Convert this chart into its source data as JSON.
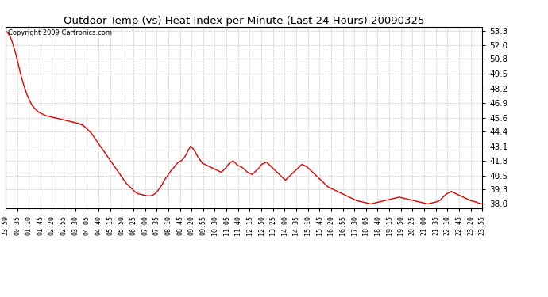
{
  "title": "Outdoor Temp (vs) Heat Index per Minute (Last 24 Hours) 20090325",
  "copyright_text": "Copyright 2009 Cartronics.com",
  "line_color": "#dd0000",
  "background_color": "#ffffff",
  "grid_color": "#bbbbbb",
  "yticks": [
    38.0,
    39.3,
    40.5,
    41.8,
    43.1,
    44.4,
    45.6,
    46.9,
    48.2,
    49.5,
    50.8,
    52.0,
    53.3
  ],
  "ylim": [
    37.65,
    53.65
  ],
  "xtick_labels": [
    "23:59",
    "00:35",
    "01:10",
    "01:45",
    "02:20",
    "02:55",
    "03:30",
    "04:05",
    "04:40",
    "05:15",
    "05:50",
    "06:25",
    "07:00",
    "07:35",
    "08:10",
    "08:45",
    "09:20",
    "09:55",
    "10:30",
    "11:05",
    "11:40",
    "12:15",
    "12:50",
    "13:25",
    "14:00",
    "14:35",
    "15:10",
    "15:45",
    "16:20",
    "16:55",
    "17:30",
    "18:05",
    "18:40",
    "19:15",
    "19:50",
    "20:25",
    "21:00",
    "21:35",
    "22:10",
    "22:45",
    "23:20",
    "23:55"
  ],
  "data_y": [
    53.3,
    53.1,
    52.8,
    52.2,
    51.5,
    50.7,
    49.8,
    49.0,
    48.3,
    47.7,
    47.2,
    46.8,
    46.5,
    46.3,
    46.1,
    46.0,
    45.9,
    45.8,
    45.75,
    45.7,
    45.65,
    45.6,
    45.55,
    45.5,
    45.45,
    45.4,
    45.35,
    45.3,
    45.25,
    45.2,
    45.15,
    45.1,
    45.0,
    44.9,
    44.7,
    44.5,
    44.3,
    44.0,
    43.7,
    43.4,
    43.1,
    42.8,
    42.5,
    42.2,
    41.9,
    41.6,
    41.3,
    41.0,
    40.7,
    40.4,
    40.1,
    39.8,
    39.6,
    39.4,
    39.2,
    39.0,
    38.9,
    38.85,
    38.8,
    38.75,
    38.7,
    38.72,
    38.75,
    38.9,
    39.1,
    39.4,
    39.7,
    40.1,
    40.4,
    40.7,
    41.0,
    41.2,
    41.5,
    41.7,
    41.8,
    42.0,
    42.3,
    42.7,
    43.1,
    42.9,
    42.6,
    42.2,
    41.9,
    41.6,
    41.5,
    41.4,
    41.3,
    41.2,
    41.1,
    41.0,
    40.9,
    40.8,
    41.0,
    41.2,
    41.5,
    41.7,
    41.8,
    41.6,
    41.4,
    41.3,
    41.2,
    41.0,
    40.8,
    40.7,
    40.6,
    40.8,
    41.0,
    41.2,
    41.5,
    41.6,
    41.7,
    41.5,
    41.3,
    41.1,
    40.9,
    40.7,
    40.5,
    40.3,
    40.1,
    40.3,
    40.5,
    40.7,
    40.9,
    41.1,
    41.3,
    41.5,
    41.4,
    41.3,
    41.1,
    40.9,
    40.7,
    40.5,
    40.3,
    40.1,
    39.9,
    39.7,
    39.5,
    39.4,
    39.3,
    39.2,
    39.1,
    39.0,
    38.9,
    38.8,
    38.7,
    38.6,
    38.5,
    38.4,
    38.3,
    38.25,
    38.2,
    38.15,
    38.1,
    38.05,
    38.0,
    38.05,
    38.1,
    38.15,
    38.2,
    38.25,
    38.3,
    38.35,
    38.4,
    38.45,
    38.5,
    38.55,
    38.6,
    38.55,
    38.5,
    38.45,
    38.4,
    38.35,
    38.3,
    38.25,
    38.2,
    38.15,
    38.1,
    38.05,
    38.0,
    38.05,
    38.1,
    38.15,
    38.2,
    38.3,
    38.5,
    38.7,
    38.9,
    39.0,
    39.1,
    39.0,
    38.9,
    38.8,
    38.7,
    38.6,
    38.5,
    38.4,
    38.3,
    38.25,
    38.2,
    38.1,
    38.05,
    38.0
  ]
}
